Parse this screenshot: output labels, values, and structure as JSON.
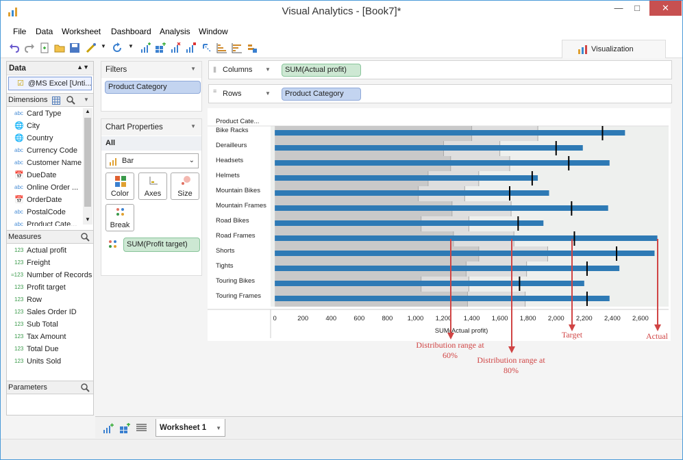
{
  "window": {
    "title": "Visual Analytics - [Book7]*",
    "minimize": "—",
    "restore": "□",
    "close": "✕"
  },
  "menu": [
    "File",
    "Data",
    "Worksheet",
    "Dashboard",
    "Analysis",
    "Window"
  ],
  "visualization_tab": "Visualization",
  "data_panel": {
    "title": "Data",
    "source": "@MS Excel [Unti...",
    "dimensions_title": "Dimensions",
    "dimensions": [
      {
        "type": "abc",
        "label": "Card Type"
      },
      {
        "type": "geo",
        "label": "City"
      },
      {
        "type": "geo",
        "label": "Country"
      },
      {
        "type": "abc",
        "label": "Currency Code"
      },
      {
        "type": "abc",
        "label": "Customer Name"
      },
      {
        "type": "date",
        "label": "DueDate"
      },
      {
        "type": "abc",
        "label": "Online Order ..."
      },
      {
        "type": "date",
        "label": "OrderDate"
      },
      {
        "type": "abc",
        "label": "PostalCode"
      },
      {
        "type": "abc",
        "label": "Product Cate..."
      }
    ],
    "measures_title": "Measures",
    "measures": [
      {
        "type": "123",
        "label": "Actual profit"
      },
      {
        "type": "123",
        "label": "Freight"
      },
      {
        "type": "f123",
        "label": "Number of Records"
      },
      {
        "type": "123",
        "label": "Profit target"
      },
      {
        "type": "123",
        "label": "Row"
      },
      {
        "type": "123",
        "label": "Sales Order ID"
      },
      {
        "type": "123",
        "label": "Sub Total"
      },
      {
        "type": "123",
        "label": "Tax Amount"
      },
      {
        "type": "123",
        "label": "Total Due"
      },
      {
        "type": "123",
        "label": "Units Sold"
      }
    ],
    "parameters_title": "Parameters"
  },
  "filters": {
    "title": "Filters",
    "items": [
      "Product Category"
    ]
  },
  "chart_properties": {
    "title": "Chart Properties",
    "scope": "All",
    "chart_type": "Bar",
    "buttons": [
      "Color",
      "Axes",
      "Size",
      "Break"
    ],
    "pill": "SUM(Profit target)"
  },
  "shelves": {
    "columns_label": "Columns",
    "columns_pill": "SUM(Actual profit)",
    "rows_label": "Rows",
    "rows_pill": "Product Category"
  },
  "chart_data": {
    "type": "bar",
    "row_header": "Product Cate...",
    "xlabel": "SUM(Actual profit)",
    "xlim": [
      -30,
      2800
    ],
    "xticks": [
      "0",
      "200",
      "400",
      "600",
      "800",
      "1,000",
      "1,200",
      "1,400",
      "1,600",
      "1,800",
      "2,000",
      "2,200",
      "2,400",
      "2,600"
    ],
    "xtick_values": [
      0,
      200,
      400,
      600,
      800,
      1000,
      1200,
      1400,
      1600,
      1800,
      2000,
      2200,
      2400,
      2600
    ],
    "categories": [
      "Bike Racks",
      "Derailleurs",
      "Headsets",
      "Helmets",
      "Mountain Bikes",
      "Mountain Frames",
      "Road Bikes",
      "Road Frames",
      "Shorts",
      "Tights",
      "Touring Bikes",
      "Touring Frames"
    ],
    "actual": [
      2490,
      2190,
      2380,
      1870,
      1950,
      2370,
      1910,
      2720,
      2700,
      2450,
      2200,
      2380
    ],
    "target": [
      2330,
      2000,
      2090,
      1830,
      1670,
      2110,
      1730,
      2130,
      2430,
      2220,
      1740,
      2220
    ],
    "range_60": [
      1400,
      1200,
      1250,
      1090,
      1020,
      1260,
      1040,
      1270,
      1450,
      1360,
      1040,
      1370
    ],
    "range_80": [
      1870,
      1600,
      1670,
      1450,
      1350,
      1680,
      1380,
      1700,
      1940,
      1790,
      1380,
      1780
    ],
    "colors": {
      "actual": "#2e7ab5",
      "range_dark": "#c9c9c9",
      "range_light": "#dedede",
      "band": "#eef0ee"
    }
  },
  "annotations": {
    "range60": "Distribution range at 60%",
    "range80": "Distribution range at 80%",
    "target": "Target",
    "actual": "Actual",
    "color": "#d04444"
  },
  "sheet_tab": "Worksheet 1"
}
